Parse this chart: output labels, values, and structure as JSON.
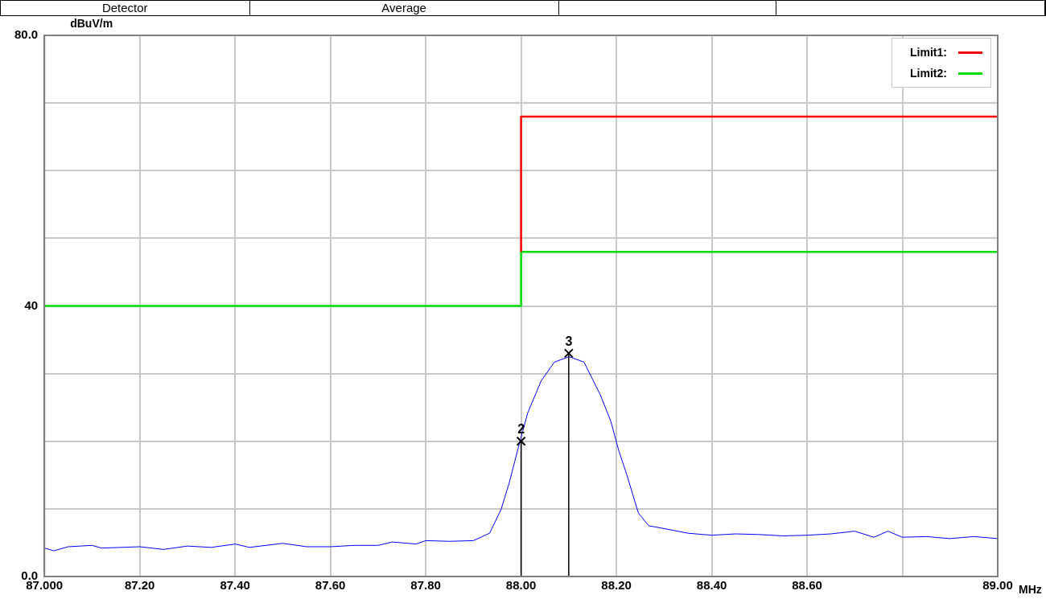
{
  "chart_data": {
    "type": "line",
    "ylabel": "dBuV/m",
    "xlabel": "MHz",
    "xlim": [
      87,
      89
    ],
    "ylim": [
      0,
      80
    ],
    "xticks": [
      {
        "value": 87,
        "label": "87.000"
      },
      {
        "value": 87.2,
        "label": "87.20"
      },
      {
        "value": 87.4,
        "label": "87.40"
      },
      {
        "value": 87.6,
        "label": "87.60"
      },
      {
        "value": 87.8,
        "label": "87.80"
      },
      {
        "value": 88,
        "label": "88.00"
      },
      {
        "value": 88.2,
        "label": "88.20"
      },
      {
        "value": 88.4,
        "label": "88.40"
      },
      {
        "value": 88.6,
        "label": "88.60"
      },
      {
        "value": 88.8,
        "label": null
      },
      {
        "value": 89,
        "label": "89.00"
      }
    ],
    "yticks": [
      {
        "value": 0,
        "label": "0.0"
      },
      {
        "value": 10,
        "label": null
      },
      {
        "value": 20,
        "label": null
      },
      {
        "value": 30,
        "label": null
      },
      {
        "value": 40,
        "label": "40"
      },
      {
        "value": 50,
        "label": null
      },
      {
        "value": 60,
        "label": null
      },
      {
        "value": 70,
        "label": null
      },
      {
        "value": 80,
        "label": "80.0"
      }
    ],
    "grid": true,
    "legend": "top right",
    "marker": "none",
    "line_style": "solid",
    "series": [
      {
        "name": "Limit1:",
        "color": "#ff0000",
        "x": [
          88.0,
          88.0,
          89.0
        ],
        "values": [
          48,
          68,
          68
        ]
      },
      {
        "name": "Limit2:",
        "color": "#00e000",
        "x": [
          87.0,
          88.0,
          88.0,
          89.0
        ],
        "values": [
          40,
          40,
          48,
          48
        ]
      },
      {
        "color": "#0000ff",
        "x": [
          87.0,
          87.02,
          87.05,
          87.1,
          87.12,
          87.2,
          87.25,
          87.3,
          87.35,
          87.4,
          87.43,
          87.5,
          87.55,
          87.6,
          87.65,
          87.7,
          87.73,
          87.78,
          87.8,
          87.85,
          87.9,
          87.934,
          87.958,
          87.975,
          87.997,
          88.014,
          88.042,
          88.07,
          88.101,
          88.132,
          88.166,
          88.188,
          88.205,
          88.222,
          88.246,
          88.268,
          88.314,
          88.35,
          88.4,
          88.45,
          88.5,
          88.55,
          88.6,
          88.65,
          88.7,
          88.74,
          88.77,
          88.8,
          88.85,
          88.9,
          88.95,
          89.0
        ],
        "values": [
          4.2,
          3.8,
          4.4,
          4.6,
          4.2,
          4.4,
          4.0,
          4.5,
          4.3,
          4.8,
          4.3,
          4.9,
          4.4,
          4.4,
          4.6,
          4.6,
          5.1,
          4.8,
          5.3,
          5.2,
          5.3,
          6.4,
          9.9,
          13.8,
          19.8,
          24.2,
          28.9,
          31.7,
          32.5,
          31.7,
          26.9,
          23.0,
          18.6,
          15.0,
          9.4,
          7.5,
          6.9,
          6.4,
          6.1,
          6.3,
          6.2,
          6.0,
          6.1,
          6.3,
          6.7,
          5.8,
          6.7,
          5.8,
          5.9,
          5.6,
          5.9,
          5.6
        ]
      }
    ],
    "annotations": [
      "Detector",
      "Average",
      {
        "text": "2",
        "x": 88.0,
        "y": 20
      },
      {
        "text": "3",
        "x": 88.1,
        "y": 33
      }
    ]
  }
}
